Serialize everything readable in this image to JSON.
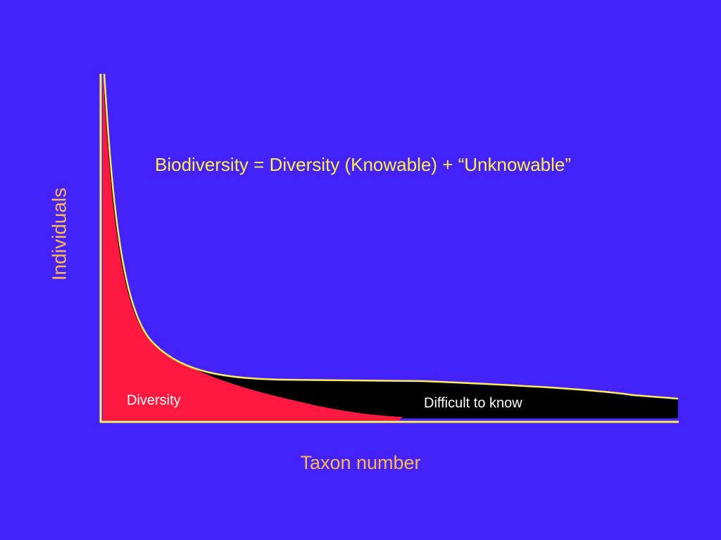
{
  "title": "Biodiversity = Diversity (Knowable) + “Unknowable”",
  "y_axis_label": "Individuals",
  "x_axis_label": "Taxon number",
  "regions": [
    {
      "label": "Diversity"
    },
    {
      "label": "Difficult to know"
    }
  ]
}
